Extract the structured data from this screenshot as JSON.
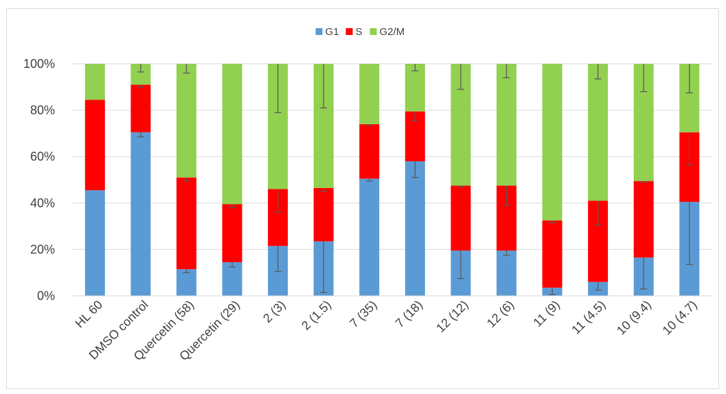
{
  "chart_data": {
    "type": "bar",
    "stacked": "percent",
    "title": "",
    "xlabel": "",
    "ylabel": "",
    "ylim": [
      0,
      100
    ],
    "y_ticks": [
      "0%",
      "20%",
      "40%",
      "60%",
      "80%",
      "100%"
    ],
    "grid": "horizontal",
    "legend_position": "top",
    "categories": [
      "HL 60",
      "DMSO control",
      "Quercetin (58)",
      "Quercetin (29)",
      "2 (3)",
      "2 (1.5)",
      "7 (35)",
      "7 (18)",
      "12 (12)",
      "12 (6)",
      "11 (9)",
      "11 (4.5)",
      "10 (9.4)",
      "10 (4.7)"
    ],
    "series": [
      {
        "name": "G1",
        "color": "#5b9bd5",
        "values": [
          45.5,
          70.5,
          11.5,
          14.5,
          21.5,
          23.5,
          50.5,
          58,
          19.5,
          19.5,
          3.5,
          6,
          16.5,
          40.5
        ],
        "error": [
          0,
          2,
          1.5,
          2,
          11,
          22,
          1,
          7,
          12,
          2,
          3,
          3.5,
          13.5,
          27
        ]
      },
      {
        "name": "S",
        "color": "#ff0000",
        "values": [
          39,
          20.5,
          39.5,
          25,
          24.5,
          23,
          23.5,
          21.5,
          28,
          28,
          29,
          35,
          33,
          30
        ],
        "error": [
          0,
          1,
          1.5,
          1.5,
          10,
          1.5,
          0.5,
          4,
          0.5,
          8.5,
          1,
          10.5,
          0.5,
          14
        ]
      },
      {
        "name": "G2/M",
        "color": "#92d050",
        "values": [
          15.5,
          9,
          49,
          60.5,
          54,
          53.5,
          26,
          20.5,
          52.5,
          52.5,
          67.5,
          59,
          50.5,
          29.5
        ],
        "error": [
          0,
          3.5,
          4,
          0,
          21,
          19,
          0,
          3,
          11,
          6,
          0,
          6.5,
          12,
          12.5
        ]
      }
    ]
  }
}
